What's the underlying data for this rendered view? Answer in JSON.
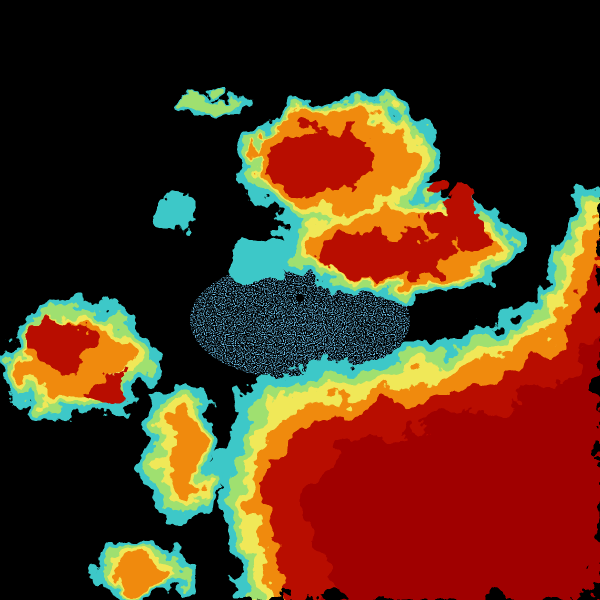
{
  "image": {
    "type": "weather-radar-reflectivity",
    "background": "#000000",
    "palette": {
      "light_blue": "#2a8fd6",
      "cyan": "#3cc8c8",
      "green": "#8fe07a",
      "yellow": "#f0f060",
      "orange": "#f08a10",
      "red_orange": "#e04a00",
      "red": "#b80a00"
    }
  }
}
